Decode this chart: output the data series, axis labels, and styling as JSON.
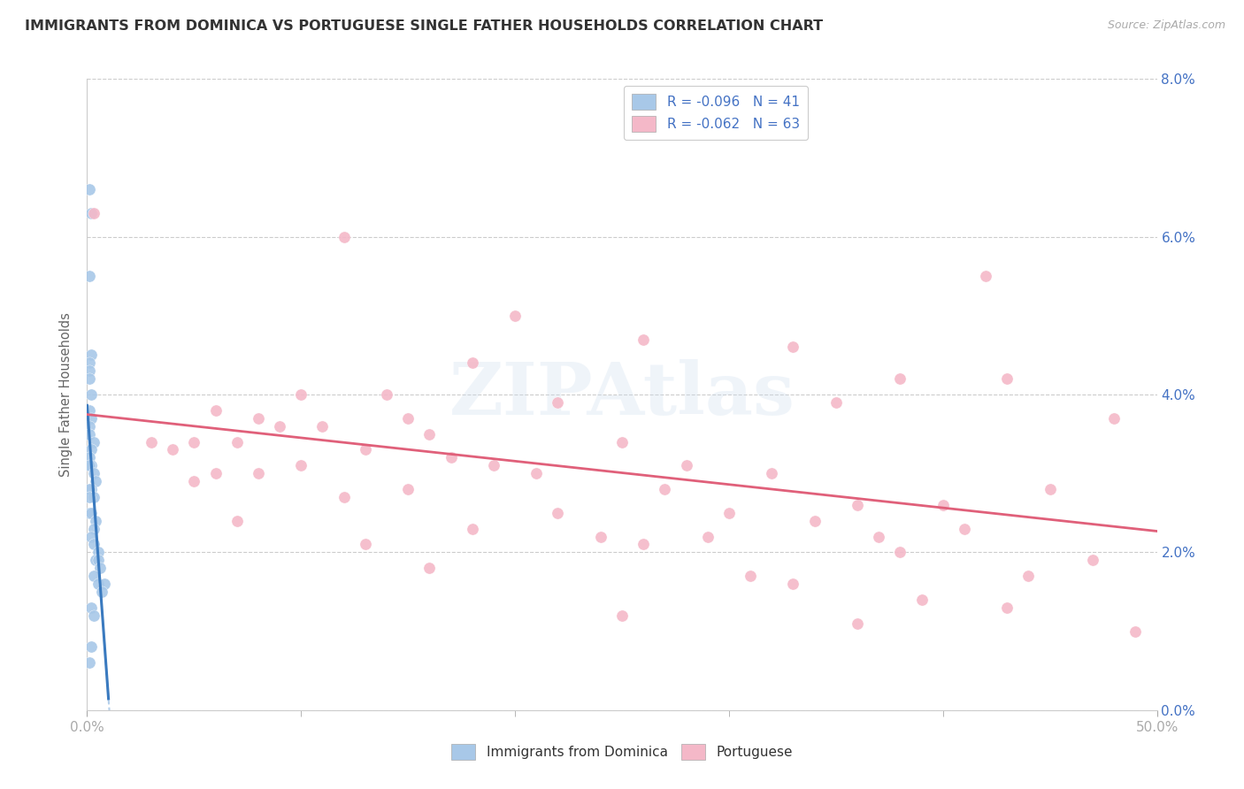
{
  "title": "IMMIGRANTS FROM DOMINICA VS PORTUGUESE SINGLE FATHER HOUSEHOLDS CORRELATION CHART",
  "source": "Source: ZipAtlas.com",
  "ylabel": "Single Father Households",
  "xlim": [
    0.0,
    0.5
  ],
  "ylim": [
    0.0,
    0.08
  ],
  "xtick_positions": [
    0.0,
    0.5
  ],
  "xtick_labels": [
    "0.0%",
    "50.0%"
  ],
  "yticks": [
    0.0,
    0.02,
    0.04,
    0.06,
    0.08
  ],
  "ytick_labels_right": [
    "0.0%",
    "2.0%",
    "4.0%",
    "6.0%",
    "8.0%"
  ],
  "legend_blue_label": "Immigrants from Dominica",
  "legend_pink_label": "Portuguese",
  "legend_blue_R": "R = -0.096",
  "legend_blue_N": "N = 41",
  "legend_pink_R": "R = -0.062",
  "legend_pink_N": "N = 63",
  "blue_color": "#a8c8e8",
  "pink_color": "#f4b8c8",
  "blue_line_color": "#3a7abf",
  "pink_line_color": "#e0607a",
  "blue_scatter": [
    [
      0.001,
      0.066
    ],
    [
      0.002,
      0.063
    ],
    [
      0.001,
      0.055
    ],
    [
      0.002,
      0.045
    ],
    [
      0.001,
      0.044
    ],
    [
      0.001,
      0.043
    ],
    [
      0.001,
      0.042
    ],
    [
      0.002,
      0.04
    ],
    [
      0.001,
      0.038
    ],
    [
      0.002,
      0.037
    ],
    [
      0.001,
      0.036
    ],
    [
      0.001,
      0.035
    ],
    [
      0.003,
      0.034
    ],
    [
      0.002,
      0.033
    ],
    [
      0.001,
      0.032
    ],
    [
      0.002,
      0.031
    ],
    [
      0.001,
      0.031
    ],
    [
      0.003,
      0.03
    ],
    [
      0.004,
      0.029
    ],
    [
      0.002,
      0.028
    ],
    [
      0.001,
      0.028
    ],
    [
      0.003,
      0.027
    ],
    [
      0.001,
      0.027
    ],
    [
      0.001,
      0.025
    ],
    [
      0.002,
      0.025
    ],
    [
      0.004,
      0.024
    ],
    [
      0.003,
      0.023
    ],
    [
      0.002,
      0.022
    ],
    [
      0.003,
      0.021
    ],
    [
      0.005,
      0.02
    ],
    [
      0.004,
      0.019
    ],
    [
      0.005,
      0.019
    ],
    [
      0.006,
      0.018
    ],
    [
      0.003,
      0.017
    ],
    [
      0.005,
      0.016
    ],
    [
      0.008,
      0.016
    ],
    [
      0.007,
      0.015
    ],
    [
      0.002,
      0.013
    ],
    [
      0.003,
      0.012
    ],
    [
      0.002,
      0.008
    ],
    [
      0.001,
      0.006
    ]
  ],
  "pink_scatter": [
    [
      0.003,
      0.063
    ],
    [
      0.12,
      0.06
    ],
    [
      0.42,
      0.055
    ],
    [
      0.2,
      0.05
    ],
    [
      0.26,
      0.047
    ],
    [
      0.33,
      0.046
    ],
    [
      0.18,
      0.044
    ],
    [
      0.38,
      0.042
    ],
    [
      0.43,
      0.042
    ],
    [
      0.1,
      0.04
    ],
    [
      0.14,
      0.04
    ],
    [
      0.22,
      0.039
    ],
    [
      0.35,
      0.039
    ],
    [
      0.06,
      0.038
    ],
    [
      0.08,
      0.037
    ],
    [
      0.15,
      0.037
    ],
    [
      0.48,
      0.037
    ],
    [
      0.09,
      0.036
    ],
    [
      0.11,
      0.036
    ],
    [
      0.16,
      0.035
    ],
    [
      0.03,
      0.034
    ],
    [
      0.05,
      0.034
    ],
    [
      0.07,
      0.034
    ],
    [
      0.25,
      0.034
    ],
    [
      0.04,
      0.033
    ],
    [
      0.13,
      0.033
    ],
    [
      0.17,
      0.032
    ],
    [
      0.1,
      0.031
    ],
    [
      0.19,
      0.031
    ],
    [
      0.28,
      0.031
    ],
    [
      0.06,
      0.03
    ],
    [
      0.08,
      0.03
    ],
    [
      0.21,
      0.03
    ],
    [
      0.32,
      0.03
    ],
    [
      0.05,
      0.029
    ],
    [
      0.15,
      0.028
    ],
    [
      0.27,
      0.028
    ],
    [
      0.45,
      0.028
    ],
    [
      0.12,
      0.027
    ],
    [
      0.36,
      0.026
    ],
    [
      0.4,
      0.026
    ],
    [
      0.22,
      0.025
    ],
    [
      0.3,
      0.025
    ],
    [
      0.07,
      0.024
    ],
    [
      0.34,
      0.024
    ],
    [
      0.18,
      0.023
    ],
    [
      0.41,
      0.023
    ],
    [
      0.24,
      0.022
    ],
    [
      0.29,
      0.022
    ],
    [
      0.37,
      0.022
    ],
    [
      0.13,
      0.021
    ],
    [
      0.26,
      0.021
    ],
    [
      0.38,
      0.02
    ],
    [
      0.47,
      0.019
    ],
    [
      0.16,
      0.018
    ],
    [
      0.31,
      0.017
    ],
    [
      0.44,
      0.017
    ],
    [
      0.33,
      0.016
    ],
    [
      0.39,
      0.014
    ],
    [
      0.43,
      0.013
    ],
    [
      0.25,
      0.012
    ],
    [
      0.36,
      0.011
    ],
    [
      0.49,
      0.01
    ]
  ],
  "background_color": "#ffffff",
  "grid_color": "#cccccc",
  "title_color": "#333333",
  "title_fontsize": 11.5,
  "axis_label_color": "#4472c4",
  "tick_label_color": "#4472c4",
  "ylabel_color": "#666666"
}
